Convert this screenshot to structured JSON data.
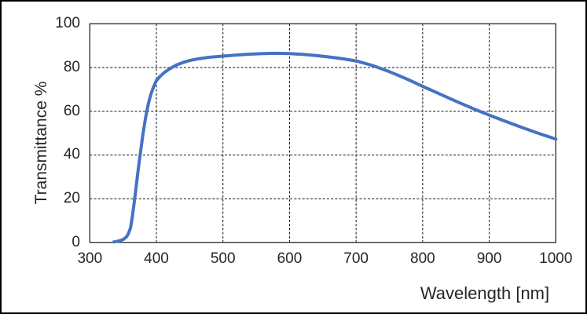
{
  "chart_data": {
    "type": "line",
    "title": "",
    "xlabel": "Wavelength [nm]",
    "ylabel": "Transmittance %",
    "xlim": [
      300,
      1000
    ],
    "ylim": [
      0,
      100
    ],
    "x_ticks": [
      300,
      400,
      500,
      600,
      700,
      800,
      900,
      1000
    ],
    "y_ticks": [
      0,
      20,
      40,
      60,
      80,
      100
    ],
    "grid": "dashed",
    "legend_position": "none",
    "series": [
      {
        "name": "Transmittance",
        "color": "#4472C4",
        "x": [
          336,
          340,
          345,
          350,
          355,
          358,
          361,
          364,
          367,
          370,
          373,
          376,
          380,
          384,
          388,
          392,
          396,
          400,
          405,
          410,
          415,
          420,
          425,
          430,
          440,
          450,
          465,
          480,
          500,
          520,
          540,
          560,
          580,
          600,
          620,
          640,
          660,
          680,
          700,
          725,
          750,
          775,
          800,
          825,
          850,
          875,
          900,
          925,
          950,
          975,
          1000
        ],
        "y": [
          0.2,
          0.4,
          0.8,
          1.3,
          2.5,
          4,
          6.5,
          12,
          19,
          26.5,
          34,
          41,
          50,
          57.5,
          63.5,
          68,
          71.3,
          74,
          75.8,
          77.2,
          78.4,
          79.4,
          80.3,
          81.1,
          82.3,
          83.2,
          84.1,
          84.7,
          85.2,
          85.7,
          86.1,
          86.4,
          86.5,
          86.4,
          86.0,
          85.5,
          84.8,
          84.0,
          83.0,
          80.9,
          78.1,
          74.9,
          71.4,
          68.0,
          64.6,
          61.3,
          58.2,
          55.3,
          52.5,
          49.8,
          47.3
        ]
      }
    ]
  },
  "colors": {
    "line": "#4472C4",
    "grid": "#111111",
    "border": "#000000",
    "background": "#ffffff",
    "text": "#262626"
  }
}
